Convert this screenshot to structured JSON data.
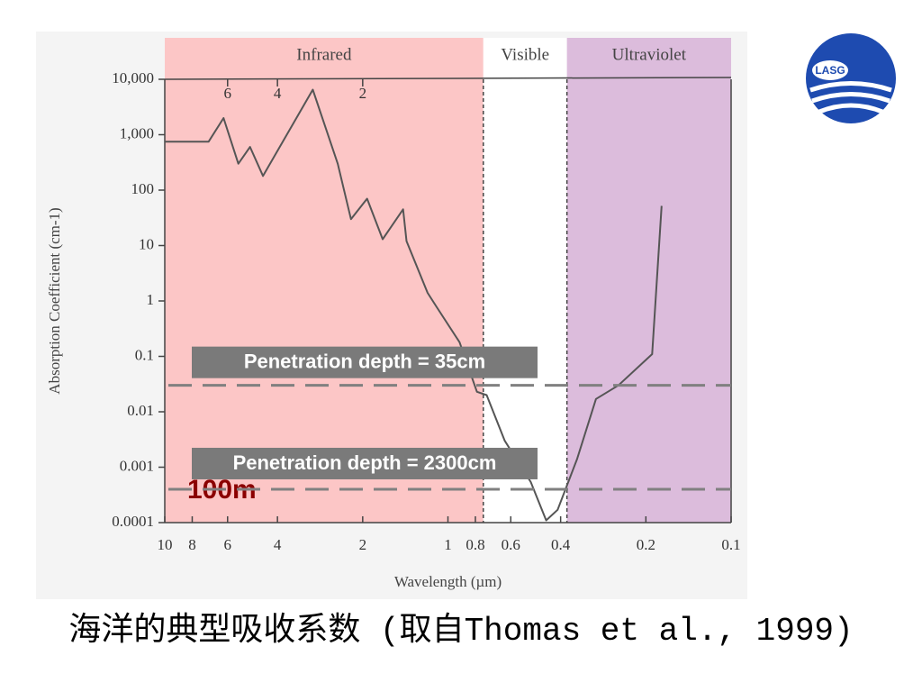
{
  "chart_data": {
    "type": "line",
    "xlabel": "Wavelength (µm)",
    "ylabel": "Absorption Coefficient (cm-1)",
    "xscale": "log",
    "yscale": "log",
    "x_reversed": true,
    "xlim": [
      10,
      0.1
    ],
    "ylim": [
      0.0001,
      10000
    ],
    "xticks": [
      10,
      8,
      6,
      4,
      2,
      1,
      0.8,
      0.6,
      0.4,
      0.2,
      0.1
    ],
    "yticks": [
      {
        "value": 10000,
        "label": "10,000"
      },
      {
        "value": 1000,
        "label": "1,000"
      },
      100,
      10,
      1,
      0.1,
      0.01,
      0.001,
      0.0001
    ],
    "top_ticks": [
      6,
      4,
      2
    ],
    "regions": [
      {
        "name": "Infrared",
        "from": 10,
        "to": 0.75,
        "color": "#fcc6c6"
      },
      {
        "name": "Visible",
        "from": 0.75,
        "to": 0.38,
        "color": "#ffffff"
      },
      {
        "name": "Ultraviolet",
        "from": 0.38,
        "to": 0.1,
        "color": "#dcbcdc"
      }
    ],
    "series": [
      {
        "color": "#555555",
        "x": [
          10,
          7,
          6.2,
          5.5,
          5.0,
          4.5,
          3.0,
          2.45,
          2.2,
          1.93,
          1.7,
          1.44,
          1.4,
          1.18,
          1.1,
          0.91,
          0.79,
          0.73,
          0.63,
          0.51,
          0.45,
          0.41,
          0.35,
          0.3,
          0.25,
          0.19,
          0.176
        ],
        "values": [
          750,
          750,
          2000,
          300,
          600,
          180,
          6500,
          300,
          30,
          70,
          13,
          45,
          12,
          1.4,
          0.8,
          0.18,
          0.023,
          0.02,
          0.003,
          0.00054,
          0.00011,
          0.00017,
          0.0014,
          0.017,
          0.03,
          0.11,
          52
        ]
      }
    ],
    "reference_lines": [
      {
        "value": 0.03,
        "label": "Penetration depth = 35cm"
      },
      {
        "value": 0.0004,
        "label": "Penetration depth = 2300cm"
      }
    ],
    "annotation": "100m"
  },
  "caption": "海洋的典型吸收系数 (取自Thomas et al., 1999)",
  "logo": "LASG"
}
